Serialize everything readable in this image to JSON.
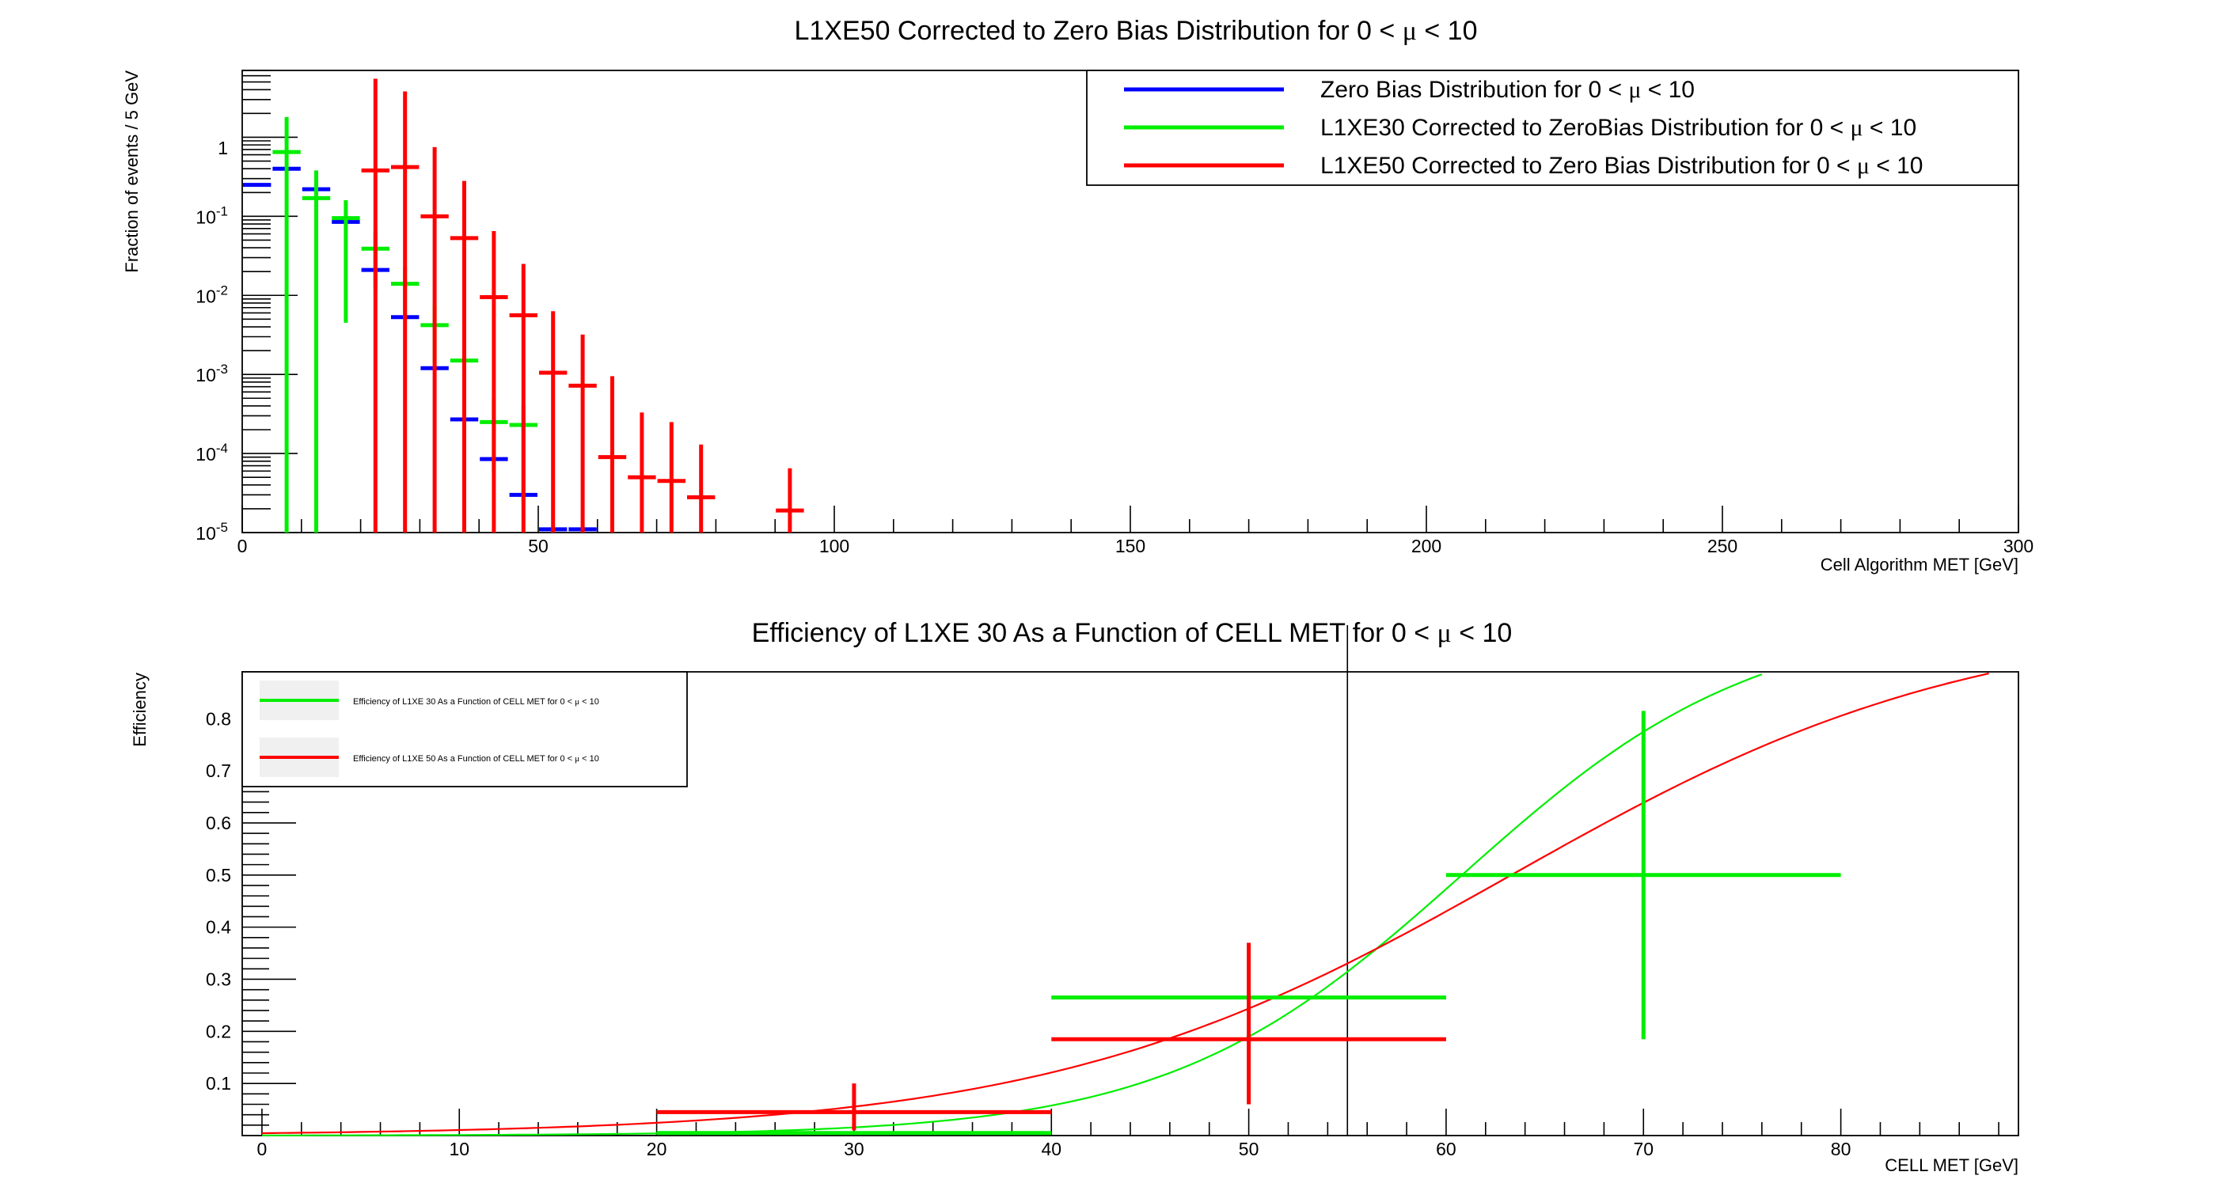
{
  "chart_data": [
    {
      "type": "scatter",
      "title": "L1XE50 Corrected to Zero Bias Distribution for 0 < μ < 10",
      "xlabel": "Cell Algorithm MET [GeV]",
      "ylabel": "Fraction of events / 5 GeV",
      "xlim": [
        0,
        300
      ],
      "ylim": [
        1e-05,
        7
      ],
      "yscale": "log",
      "grid": false,
      "legend_position": "top-right",
      "x_ticks": [
        "0",
        "50",
        "100",
        "150",
        "200",
        "250",
        "300"
      ],
      "y_ticks": [
        "1",
        "10^-1",
        "10^-2",
        "10^-3",
        "10^-4",
        "10^-5"
      ],
      "series": [
        {
          "name": "Zero Bias Distribution for 0 < μ < 10",
          "color": "#0000ff",
          "points": [
            {
              "x": 2.5,
              "y": 0.25
            },
            {
              "x": 7.5,
              "y": 0.4
            },
            {
              "x": 12.5,
              "y": 0.22
            },
            {
              "x": 17.5,
              "y": 0.085
            },
            {
              "x": 22.5,
              "y": 0.021
            },
            {
              "x": 27.5,
              "y": 0.0053
            },
            {
              "x": 32.5,
              "y": 0.0012
            },
            {
              "x": 37.5,
              "y": 0.00027
            },
            {
              "x": 42.5,
              "y": 8.5e-05
            },
            {
              "x": 47.5,
              "y": 3e-05
            },
            {
              "x": 52.5,
              "y": 1.1e-05
            },
            {
              "x": 57.5,
              "y": 1.1e-05
            }
          ]
        },
        {
          "name": "L1XE30 Corrected to ZeroBias Distribution for 0 < μ < 10",
          "color": "#00ee00",
          "points": [
            {
              "x": 7.5,
              "y": 0.65,
              "ylo": 1e-05,
              "yhi": 1.8
            },
            {
              "x": 12.5,
              "y": 0.17,
              "ylo": 1e-05,
              "yhi": 0.38
            },
            {
              "x": 17.5,
              "y": 0.095,
              "ylo": 0.0045,
              "yhi": 0.16
            },
            {
              "x": 22.5,
              "y": 0.039,
              "ylo": 0.012,
              "yhi": 0.065
            },
            {
              "x": 27.5,
              "y": 0.014,
              "ylo": 0.0052,
              "yhi": 0.023
            },
            {
              "x": 32.5,
              "y": 0.0042,
              "ylo": 0.0014,
              "yhi": 0.0075
            },
            {
              "x": 37.5,
              "y": 0.0015,
              "ylo": 0.0006,
              "yhi": 0.0025
            },
            {
              "x": 42.5,
              "y": 0.00025,
              "ylo": 6e-05,
              "yhi": 0.0005
            },
            {
              "x": 47.5,
              "y": 0.00023,
              "ylo": 2.5e-05,
              "yhi": 0.0004
            }
          ]
        },
        {
          "name": "L1XE50 Corrected to Zero Bias Distribution for 0 < μ < 10",
          "color": "#ff0000",
          "points": [
            {
              "x": 22.5,
              "y": 0.38,
              "ylo": 1e-05,
              "yhi": 5.5
            },
            {
              "x": 27.5,
              "y": 0.42,
              "ylo": 1e-05,
              "yhi": 3.8
            },
            {
              "x": 32.5,
              "y": 0.1,
              "ylo": 1e-05,
              "yhi": 0.75
            },
            {
              "x": 37.5,
              "y": 0.053,
              "ylo": 1e-05,
              "yhi": 0.28
            },
            {
              "x": 42.5,
              "y": 0.0095,
              "ylo": 1e-05,
              "yhi": 0.065
            },
            {
              "x": 47.5,
              "y": 0.0056,
              "ylo": 1e-05,
              "yhi": 0.025
            },
            {
              "x": 52.5,
              "y": 0.00105,
              "ylo": 1e-05,
              "yhi": 0.0063
            },
            {
              "x": 57.5,
              "y": 0.00072,
              "ylo": 1e-05,
              "yhi": 0.0032
            },
            {
              "x": 62.5,
              "y": 9e-05,
              "ylo": 1e-05,
              "yhi": 0.00095
            },
            {
              "x": 67.5,
              "y": 5e-05,
              "ylo": 1e-05,
              "yhi": 0.00033
            },
            {
              "x": 72.5,
              "y": 4.5e-05,
              "ylo": 1e-05,
              "yhi": 0.00025
            },
            {
              "x": 77.5,
              "y": 2.8e-05,
              "ylo": 1e-05,
              "yhi": 0.00013
            },
            {
              "x": 92.5,
              "y": 1.9e-05,
              "ylo": 1e-05,
              "yhi": 6.5e-05
            }
          ]
        }
      ]
    },
    {
      "type": "scatter",
      "title": "Efficiency of L1XE 30 As a Function of CELL MET for 0 < μ < 10",
      "xlabel": "CELL MET [GeV]",
      "ylabel": "Efficiency",
      "xlim": [
        -1,
        89
      ],
      "ylim": [
        0,
        0.89
      ],
      "grid": false,
      "legend_position": "top-left",
      "marker_line_x": 55,
      "x_ticks": [
        "0",
        "10",
        "20",
        "30",
        "40",
        "50",
        "60",
        "70",
        "80"
      ],
      "y_ticks": [
        "0.1",
        "0.2",
        "0.3",
        "0.4",
        "0.5",
        "0.6",
        "0.7",
        "0.8"
      ],
      "series": [
        {
          "name": "Efficiency of L1XE 30 As a Function of CELL MET for 0 < μ < 10",
          "color": "#00ee00",
          "points": [
            {
              "x": 30,
              "xlo": 20,
              "xhi": 40,
              "y": 0.005
            },
            {
              "x": 50,
              "xlo": 40,
              "xhi": 60,
              "y": 0.265
            },
            {
              "x": 70,
              "xlo": 60,
              "xhi": 80,
              "y": 0.5,
              "ylo": 0.185,
              "yhi": 0.815
            }
          ],
          "fit": {
            "function": "sigmoid",
            "x0": 60.8,
            "width": 7.44,
            "ymax": 1.0
          }
        },
        {
          "name": "Efficiency of L1XE 50 As a Function of CELL MET for 0 < μ < 10",
          "color": "#ff0000",
          "points": [
            {
              "x": 30,
              "xlo": 20,
              "xhi": 40,
              "y": 0.045,
              "ylo": 0.01,
              "yhi": 0.1
            },
            {
              "x": 50,
              "xlo": 40,
              "xhi": 60,
              "y": 0.185,
              "ylo": 0.06,
              "yhi": 0.37
            }
          ],
          "fit": {
            "function": "sigmoid",
            "x0": 63.3,
            "width": 11.75,
            "ymax": 1.0
          }
        }
      ]
    }
  ]
}
